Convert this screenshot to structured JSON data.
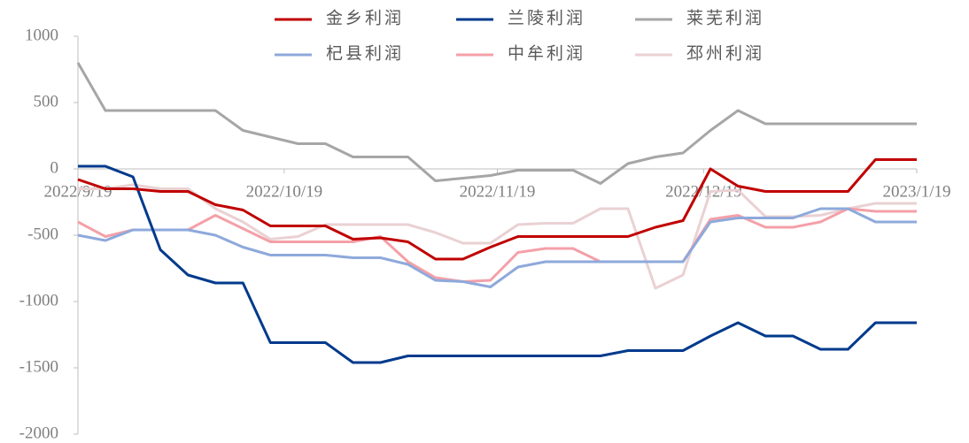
{
  "chart_data": {
    "type": "line",
    "x": [
      "2022/9/19",
      "2022/9/23",
      "2022/9/27",
      "2022/10/1",
      "2022/10/5",
      "2022/10/9",
      "2022/10/13",
      "2022/10/17",
      "2022/10/21",
      "2022/10/25",
      "2022/10/29",
      "2022/11/2",
      "2022/11/6",
      "2022/11/10",
      "2022/11/14",
      "2022/11/18",
      "2022/11/22",
      "2022/11/26",
      "2022/11/30",
      "2022/12/4",
      "2022/12/8",
      "2022/12/12",
      "2022/12/16",
      "2022/12/20",
      "2022/12/24",
      "2022/12/28",
      "2023/1/1",
      "2023/1/5",
      "2023/1/9",
      "2023/1/13",
      "2023/1/17",
      "2023/1/19"
    ],
    "series": [
      {
        "name": "金乡利润",
        "color": "#c00000",
        "values": [
          -80,
          -150,
          -150,
          -170,
          -170,
          -270,
          -310,
          -430,
          -430,
          -430,
          -530,
          -520,
          -550,
          -680,
          -680,
          -590,
          -510,
          -510,
          -510,
          -510,
          -510,
          -440,
          -390,
          0,
          -130,
          -170,
          -170,
          -170,
          -170,
          70,
          70,
          70
        ]
      },
      {
        "name": "兰陵利润",
        "color": "#003a8c",
        "values": [
          20,
          20,
          -60,
          -610,
          -800,
          -860,
          -860,
          -1310,
          -1310,
          -1310,
          -1460,
          -1460,
          -1410,
          -1410,
          -1410,
          -1410,
          -1410,
          -1410,
          -1410,
          -1410,
          -1370,
          -1370,
          -1370,
          -1260,
          -1160,
          -1260,
          -1260,
          -1360,
          -1360,
          -1160,
          -1160,
          -1160
        ]
      },
      {
        "name": "莱芜利润",
        "color": "#a6a6a6",
        "values": [
          800,
          440,
          440,
          440,
          440,
          440,
          290,
          240,
          190,
          190,
          90,
          90,
          90,
          -90,
          -70,
          -50,
          -10,
          -10,
          -10,
          -110,
          40,
          90,
          120,
          290,
          440,
          340,
          340,
          340,
          340,
          340,
          340,
          340
        ]
      },
      {
        "name": "杞县利润",
        "color": "#8ea9db",
        "values": [
          -500,
          -540,
          -460,
          -460,
          -460,
          -500,
          -590,
          -650,
          -650,
          -650,
          -670,
          -670,
          -720,
          -840,
          -850,
          -890,
          -740,
          -700,
          -700,
          -700,
          -700,
          -700,
          -700,
          -400,
          -370,
          -370,
          -370,
          -300,
          -300,
          -400,
          -400,
          -400
        ]
      },
      {
        "name": "中牟利润",
        "color": "#f4a0a8",
        "values": [
          -400,
          -510,
          -460,
          -460,
          -460,
          -350,
          -450,
          -550,
          -550,
          -550,
          -550,
          -510,
          -700,
          -820,
          -850,
          -840,
          -630,
          -600,
          -600,
          -700,
          -700,
          -700,
          -700,
          -380,
          -350,
          -440,
          -440,
          -400,
          -300,
          -320,
          -320,
          -320
        ]
      },
      {
        "name": "邳州利润",
        "color": "#ead1d3",
        "values": [
          -150,
          -150,
          -120,
          -150,
          -150,
          -300,
          -400,
          -530,
          -510,
          -420,
          -420,
          -420,
          -420,
          -480,
          -560,
          -560,
          -420,
          -410,
          -410,
          -300,
          -300,
          -900,
          -800,
          -170,
          -160,
          -360,
          -360,
          -350,
          -300,
          -260,
          -260,
          -260
        ]
      }
    ],
    "xlim": [
      "2022/9/19",
      "2023/1/19"
    ],
    "xticks": [
      "2022/9/19",
      "2022/10/19",
      "2022/11/19",
      "2022/12/19",
      "2023/1/19"
    ],
    "ylim": [
      -2000,
      1000
    ],
    "yticks": [
      -2000,
      -1500,
      -1000,
      -500,
      0,
      500,
      1000
    ],
    "grid": false,
    "legend": "top"
  }
}
